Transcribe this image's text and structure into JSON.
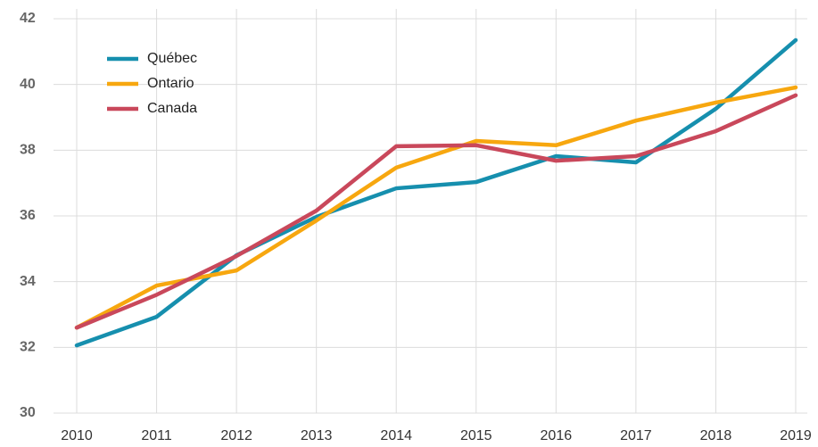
{
  "chart_data": {
    "type": "line",
    "categories": [
      "2010",
      "2011",
      "2012",
      "2013",
      "2014",
      "2015",
      "2016",
      "2017",
      "2018",
      "2019"
    ],
    "series": [
      {
        "name": "Québec",
        "color": "#168fae",
        "values": [
          32.06,
          32.93,
          34.8,
          35.97,
          36.84,
          37.03,
          37.82,
          37.63,
          39.26,
          41.35
        ]
      },
      {
        "name": "Ontario",
        "color": "#f7a70f",
        "values": [
          32.6,
          33.88,
          34.34,
          35.86,
          37.47,
          38.28,
          38.15,
          38.9,
          39.45,
          39.91
        ]
      },
      {
        "name": "Canada",
        "color": "#c9485b",
        "values": [
          32.6,
          33.6,
          34.78,
          36.16,
          38.12,
          38.15,
          37.68,
          37.82,
          38.58,
          39.67
        ]
      }
    ],
    "ylim": [
      30,
      42
    ],
    "yticks": [
      30,
      32,
      34,
      36,
      38,
      40,
      42
    ],
    "grid": true,
    "legend": "top-left"
  }
}
